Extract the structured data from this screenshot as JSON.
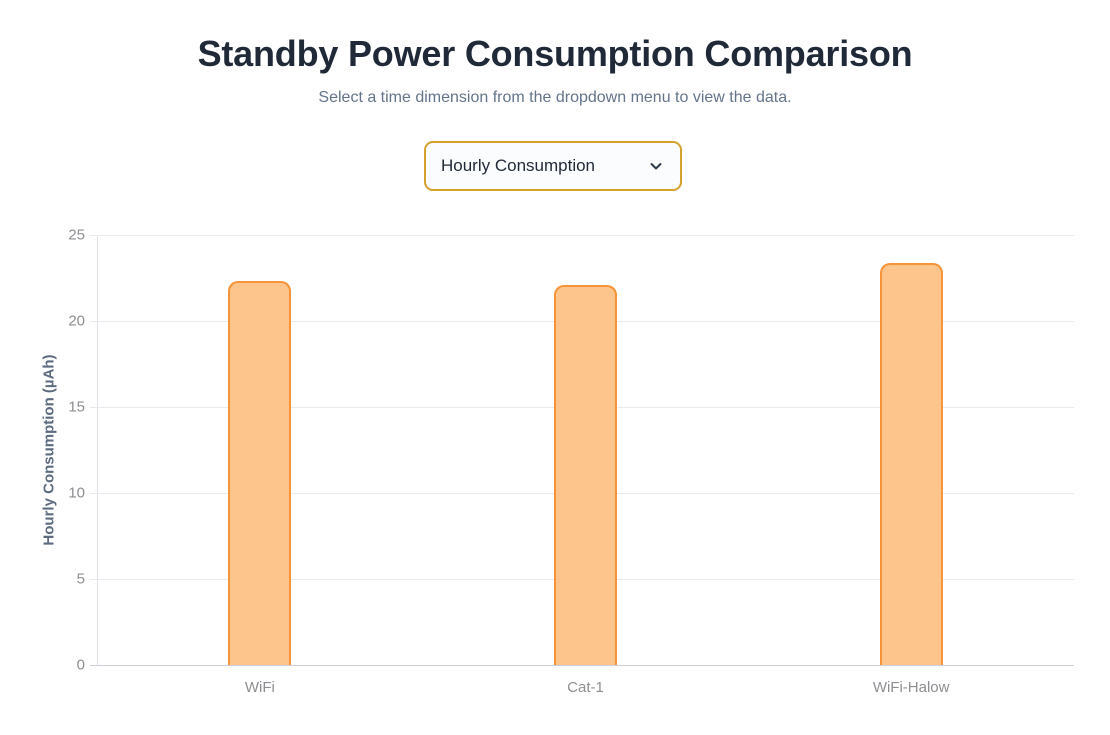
{
  "page": {
    "title": "Standby Power Consumption Comparison",
    "subtitle": "Select a time dimension from the dropdown menu to view the data."
  },
  "dropdown": {
    "selected_option": "Hourly Consumption",
    "chevron_icon": "chevron-down"
  },
  "colors": {
    "title_text": "#1f2937",
    "subtitle_text": "#64748b",
    "dropdown_border": "#d4a12f",
    "bar_fill": "#fdc58b",
    "bar_border": "#f79338",
    "gridline": "#e9e9f0",
    "axis_text": "#8e8e93",
    "y_axis_title_text": "#5d6b80"
  },
  "chart_data": {
    "type": "bar",
    "title": "",
    "categories": [
      "WiFi",
      "Cat-1",
      "WiFi-Halow"
    ],
    "values": [
      22.3,
      22.1,
      23.4
    ],
    "xlabel": "",
    "ylabel": "Hourly Consumption (µAh)",
    "ylim": [
      0,
      25
    ],
    "yticks": [
      0,
      5,
      10,
      15,
      20,
      25
    ],
    "grid": true,
    "legend": false,
    "bar_fill_color": "#fdc58b",
    "bar_border_color": "#f79338"
  }
}
